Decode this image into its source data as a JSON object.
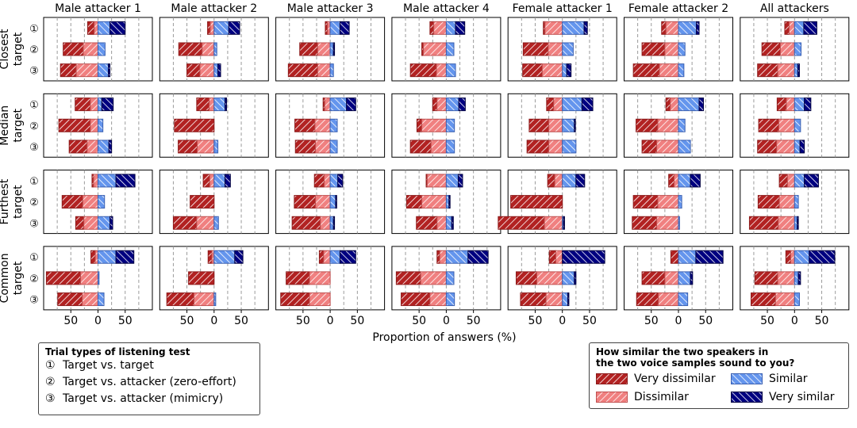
{
  "chart_data": {
    "type": "bar",
    "subtype": "diverging-stacked-horizontal-bar-grid",
    "xlabel": "Proportion of answers (%)",
    "xlim": [
      -100,
      100
    ],
    "xticks": [
      -50,
      0,
      50
    ],
    "xtick_labels": [
      "50",
      "0",
      "50"
    ],
    "gridlines_x": [
      -75,
      -50,
      -25,
      0,
      25,
      50,
      75
    ],
    "columns": [
      "Male attacker 1",
      "Male attacker 2",
      "Male attacker 3",
      "Male attacker 4",
      "Female attacker 1",
      "Female attacker 2",
      "All attackers"
    ],
    "rows": [
      {
        "line1": "Closest",
        "line2": "target"
      },
      {
        "line1": "Median",
        "line2": "target"
      },
      {
        "line1": "Furthest",
        "line2": "target"
      },
      {
        "line1": "Common",
        "line2": "target"
      }
    ],
    "trial_markers": [
      "①",
      "②",
      "③"
    ],
    "categories": [
      "Very dissimilar",
      "Dissimilar",
      "Similar",
      "Very similar"
    ],
    "colors": {
      "very_dissimilar": "#b22222",
      "dissimilar": "#f08080",
      "similar": "#6495ed",
      "very_similar": "#000080"
    },
    "panels": [
      [
        [
          [
            12,
            7,
            22,
            28
          ],
          [
            37,
            27,
            13,
            0
          ],
          [
            29,
            40,
            19,
            3
          ]
        ],
        [
          [
            28,
            14,
            7,
            21
          ],
          [
            58,
            14,
            9,
            0
          ],
          [
            33,
            20,
            20,
            5
          ]
        ],
        [
          [
            3,
            8,
            33,
            35
          ],
          [
            38,
            28,
            12,
            0
          ],
          [
            15,
            26,
            22,
            5
          ]
        ],
        [
          [
            8,
            5,
            33,
            33
          ],
          [
            63,
            32,
            2,
            0
          ],
          [
            45,
            29,
            11,
            0
          ]
        ]
      ],
      [
        [
          [
            5,
            7,
            27,
            20
          ],
          [
            43,
            22,
            5,
            0
          ],
          [
            24,
            26,
            7,
            5
          ]
        ],
        [
          [
            23,
            9,
            20,
            3
          ],
          [
            73,
            0,
            0,
            0
          ],
          [
            35,
            31,
            7,
            0
          ]
        ],
        [
          [
            12,
            8,
            20,
            10
          ],
          [
            44,
            0,
            0,
            0
          ],
          [
            43,
            32,
            8,
            0
          ]
        ],
        [
          [
            7,
            4,
            38,
            15
          ],
          [
            47,
            0,
            0,
            0
          ],
          [
            50,
            37,
            3,
            0
          ]
        ]
      ],
      [
        [
          [
            4,
            5,
            18,
            17
          ],
          [
            33,
            23,
            6,
            2
          ],
          [
            54,
            23,
            6,
            0
          ]
        ],
        [
          [
            3,
            10,
            30,
            17
          ],
          [
            37,
            28,
            13,
            0
          ],
          [
            37,
            27,
            13,
            0
          ]
        ],
        [
          [
            18,
            11,
            14,
            9
          ],
          [
            39,
            27,
            10,
            2
          ],
          [
            52,
            18,
            6,
            2
          ]
        ],
        [
          [
            8,
            12,
            18,
            29
          ],
          [
            43,
            38,
            0,
            0
          ],
          [
            53,
            38,
            0,
            0
          ]
        ]
      ],
      [
        [
          [
            7,
            23,
            17,
            17
          ],
          [
            3,
            42,
            14,
            0
          ],
          [
            48,
            18,
            17,
            0
          ]
        ],
        [
          [
            8,
            17,
            23,
            12
          ],
          [
            9,
            45,
            15,
            0
          ],
          [
            38,
            28,
            15,
            0
          ]
        ],
        [
          [
            2,
            35,
            22,
            8
          ],
          [
            28,
            45,
            5,
            2
          ],
          [
            38,
            17,
            10,
            3
          ]
        ],
        [
          [
            5,
            12,
            40,
            37
          ],
          [
            45,
            47,
            14,
            0
          ],
          [
            53,
            30,
            15,
            0
          ]
        ]
      ],
      [
        [
          [
            3,
            32,
            40,
            6
          ],
          [
            46,
            26,
            20,
            0
          ],
          [
            36,
            37,
            8,
            8
          ]
        ],
        [
          [
            13,
            16,
            36,
            20
          ],
          [
            36,
            25,
            22,
            2
          ],
          [
            40,
            25,
            25,
            0
          ]
        ],
        [
          [
            13,
            14,
            25,
            16
          ],
          [
            95,
            0,
            0,
            0
          ],
          [
            85,
            33,
            2,
            2
          ]
        ],
        [
          [
            12,
            12,
            0,
            78
          ],
          [
            38,
            47,
            22,
            3
          ],
          [
            47,
            30,
            10,
            2
          ]
        ]
      ],
      [
        [
          [
            8,
            23,
            33,
            5
          ],
          [
            42,
            25,
            12,
            0
          ],
          [
            48,
            35,
            10,
            0
          ]
        ],
        [
          [
            8,
            15,
            38,
            8
          ],
          [
            40,
            38,
            12,
            0
          ],
          [
            27,
            40,
            22,
            0
          ]
        ],
        [
          [
            10,
            8,
            22,
            18
          ],
          [
            45,
            38,
            6,
            0
          ],
          [
            45,
            40,
            2,
            0
          ]
        ],
        [
          [
            14,
            0,
            32,
            50
          ],
          [
            42,
            25,
            22,
            4
          ],
          [
            40,
            37,
            17,
            0
          ]
        ]
      ],
      [
        [
          [
            8,
            10,
            17,
            24
          ],
          [
            34,
            26,
            12,
            0
          ],
          [
            37,
            31,
            6,
            3
          ]
        ],
        [
          [
            17,
            15,
            18,
            12
          ],
          [
            37,
            29,
            11,
            0
          ],
          [
            35,
            33,
            10,
            8
          ]
        ],
        [
          [
            15,
            13,
            18,
            26
          ],
          [
            39,
            28,
            7,
            0
          ],
          [
            53,
            30,
            5,
            2
          ]
        ],
        [
          [
            9,
            7,
            27,
            47
          ],
          [
            42,
            31,
            7,
            4
          ],
          [
            45,
            35,
            9,
            0
          ]
        ]
      ]
    ]
  },
  "legend_trial": {
    "title": "Trial types of listening test",
    "items": [
      {
        "num": "①",
        "label": "Target vs. target"
      },
      {
        "num": "②",
        "label": "Target vs. attacker (zero-effort)"
      },
      {
        "num": "③",
        "label": "Target vs. attacker (mimicry)"
      }
    ]
  },
  "legend_similarity": {
    "title_line1": "How similar the two speakers in",
    "title_line2": "the two voice samples sound to you?",
    "items": [
      "Very dissimilar",
      "Similar",
      "Dissimilar",
      "Very similar"
    ]
  }
}
